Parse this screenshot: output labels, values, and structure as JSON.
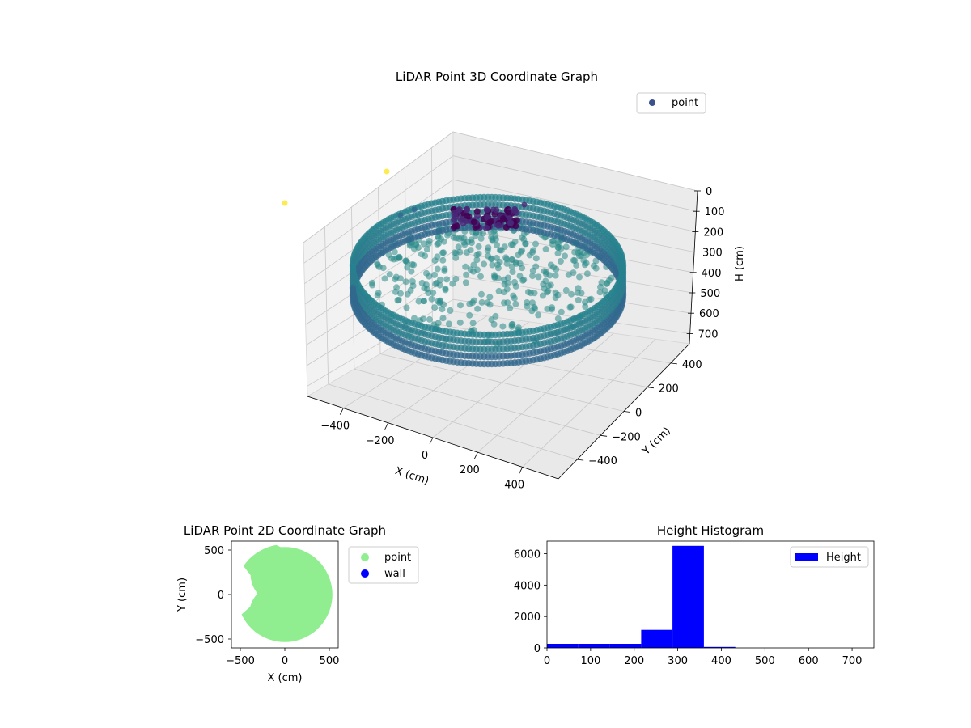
{
  "chart_data": [
    {
      "type": "scatter",
      "title": "LiDAR Point 3D Coordinate Graph",
      "xlabel": "X (cm)",
      "ylabel": "Y (cm)",
      "zlabel": "H (cm)",
      "x_ticks": [
        "−400",
        "−200",
        "0",
        "200",
        "400"
      ],
      "y_ticks": [
        "400",
        "200",
        "0",
        "−200",
        "−400"
      ],
      "z_ticks": [
        "0",
        "100",
        "200",
        "300",
        "400",
        "500",
        "600",
        "700"
      ],
      "xlim": [
        -560,
        560
      ],
      "ylim": [
        -560,
        560
      ],
      "zlim": [
        0,
        750
      ],
      "z_inverted": true,
      "colormap": "viridis",
      "legend": [
        {
          "label": "point",
          "color": "#3b528b"
        }
      ],
      "legend_position": "top-right",
      "grid": true,
      "series": [
        {
          "name": "point",
          "description": "cylindrical wall ring of radius ~430 cm at heights ~250-380 cm, plus sloped interior surface; dense purple cluster near top at height ~0-100 cm"
        }
      ]
    },
    {
      "type": "scatter",
      "title": "LiDAR Point 2D Coordinate Graph",
      "xlabel": "X (cm)",
      "ylabel": "Y (cm)",
      "x_ticks": [
        "−500",
        "0",
        "500"
      ],
      "y_ticks": [
        "500",
        "0",
        "−500"
      ],
      "xlim": [
        -600,
        600
      ],
      "ylim": [
        -600,
        600
      ],
      "legend": [
        {
          "label": "point",
          "color": "#90ee90"
        },
        {
          "label": "wall",
          "color": "#0000ff"
        }
      ],
      "legend_position": "outside-right",
      "series": [
        {
          "name": "point",
          "color": "#90ee90"
        },
        {
          "name": "wall",
          "color": "#0000ff"
        }
      ]
    },
    {
      "type": "bar",
      "title": "Height Histogram",
      "xlabel": "",
      "ylabel": "",
      "x_ticks": [
        "0",
        "100",
        "200",
        "300",
        "400",
        "500",
        "600",
        "700"
      ],
      "y_ticks": [
        "0",
        "2000",
        "4000",
        "6000"
      ],
      "xlim": [
        0,
        750
      ],
      "ylim": [
        0,
        6800
      ],
      "legend": [
        {
          "label": "Height",
          "color": "#0000ff"
        }
      ],
      "legend_position": "top-right",
      "bins": [
        {
          "start": 0,
          "end": 72,
          "count": 260
        },
        {
          "start": 72,
          "end": 144,
          "count": 260
        },
        {
          "start": 144,
          "end": 216,
          "count": 260
        },
        {
          "start": 216,
          "end": 288,
          "count": 1150
        },
        {
          "start": 288,
          "end": 360,
          "count": 6500
        },
        {
          "start": 360,
          "end": 432,
          "count": 60
        },
        {
          "start": 432,
          "end": 504,
          "count": 0
        },
        {
          "start": 504,
          "end": 576,
          "count": 0
        },
        {
          "start": 576,
          "end": 648,
          "count": 0
        },
        {
          "start": 648,
          "end": 720,
          "count": 0
        }
      ]
    }
  ]
}
